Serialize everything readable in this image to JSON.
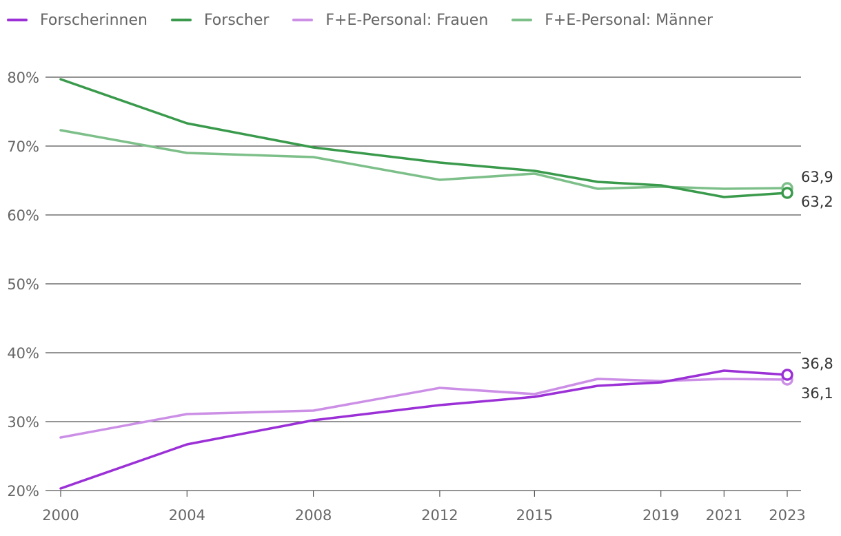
{
  "chart_data": {
    "type": "line",
    "title": "",
    "xlabel": "",
    "ylabel": "",
    "ylim": [
      20,
      80
    ],
    "y_ticks": [
      20,
      30,
      40,
      50,
      60,
      70,
      80
    ],
    "y_tick_suffix": "%",
    "x_ticks": [
      2000,
      2004,
      2008,
      2012,
      2015,
      2019,
      2021,
      2023
    ],
    "xlim": [
      2000,
      2023
    ],
    "grid": "horizontal",
    "legend": "top-left",
    "series": [
      {
        "name": "Forscherinnen",
        "color": "#9b30d6",
        "x": [
          2000,
          2004,
          2008,
          2012,
          2015,
          2017,
          2019,
          2021,
          2023
        ],
        "values": [
          20.3,
          26.7,
          30.2,
          32.4,
          33.6,
          35.2,
          35.7,
          37.4,
          36.8
        ],
        "end_label": "36,8"
      },
      {
        "name": "Forscher",
        "color": "#3a9a4c",
        "x": [
          2000,
          2004,
          2008,
          2012,
          2015,
          2017,
          2019,
          2021,
          2023
        ],
        "values": [
          79.7,
          73.3,
          69.8,
          67.6,
          66.4,
          64.8,
          64.3,
          62.6,
          63.2
        ],
        "end_label": "63,2"
      },
      {
        "name": "F+E-Personal: Frauen",
        "color": "#cc8fe6",
        "x": [
          2000,
          2004,
          2008,
          2012,
          2015,
          2017,
          2019,
          2021,
          2023
        ],
        "values": [
          27.7,
          31.1,
          31.6,
          34.9,
          34.0,
          36.2,
          35.9,
          36.2,
          36.1
        ],
        "end_label": "36,1"
      },
      {
        "name": "F+E-Personal: Männer",
        "color": "#7dbf89",
        "x": [
          2000,
          2004,
          2008,
          2012,
          2015,
          2017,
          2019,
          2021,
          2023
        ],
        "values": [
          72.3,
          69.0,
          68.4,
          65.1,
          66.0,
          63.8,
          64.1,
          63.8,
          63.9
        ],
        "end_label": "63,9"
      }
    ]
  }
}
